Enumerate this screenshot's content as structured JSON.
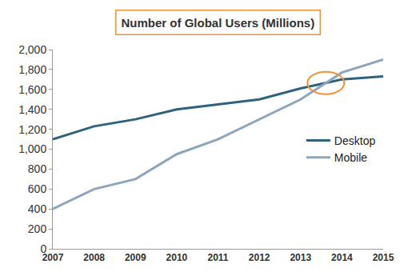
{
  "chart_data": {
    "type": "line",
    "title": "Number of Global Users (Millions)",
    "categories": [
      "2007",
      "2008",
      "2009",
      "2010",
      "2011",
      "2012",
      "2013",
      "2014",
      "2015"
    ],
    "series": [
      {
        "name": "Desktop",
        "color": "#2e627f",
        "values": [
          1100,
          1230,
          1300,
          1400,
          1450,
          1500,
          1610,
          1700,
          1730
        ]
      },
      {
        "name": "Mobile",
        "color": "#8ba6bd",
        "values": [
          400,
          600,
          700,
          950,
          1100,
          1300,
          1500,
          1770,
          1900
        ]
      }
    ],
    "ylim": [
      0,
      2000
    ],
    "yticks": [
      0,
      200,
      400,
      600,
      800,
      {
        "value": 1000,
        "label": "1,000"
      },
      {
        "value": 1200,
        "label": "1,200"
      },
      {
        "value": 1400,
        "label": "1,400"
      },
      {
        "value": 1600,
        "label": "1,600"
      },
      {
        "value": 1800,
        "label": "1,800"
      },
      {
        "value": 2000,
        "label": "2,000"
      }
    ],
    "grid": false,
    "legend": "right"
  }
}
